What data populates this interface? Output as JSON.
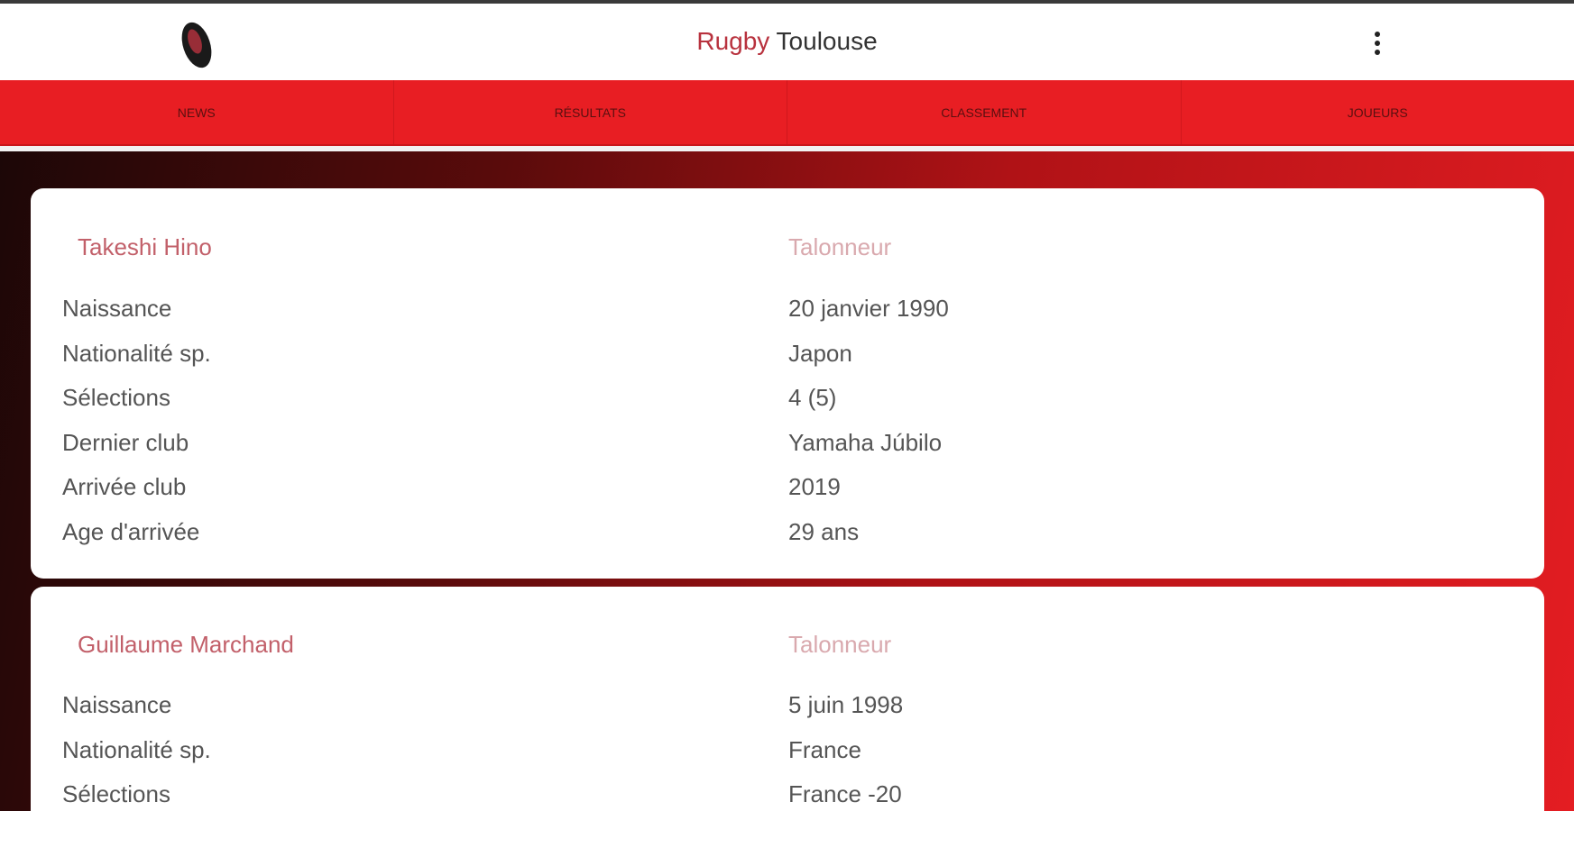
{
  "header": {
    "title_accent": "Rugby",
    "title_rest": " Toulouse",
    "logo_icon": "rugby-ball-icon",
    "menu_icon": "kebab-menu-icon"
  },
  "nav": [
    {
      "label": "News"
    },
    {
      "label": "Résultats"
    },
    {
      "label": "Classement"
    },
    {
      "label": "Joueurs"
    }
  ],
  "players": [
    {
      "name": "Takeshi Hino",
      "position": "Talonneur",
      "rows": [
        {
          "label": "Naissance",
          "value": "20 janvier 1990"
        },
        {
          "label": "Nationalité sp.",
          "value": "Japon"
        },
        {
          "label": "Sélections",
          "value": "4 (5)"
        },
        {
          "label": "Dernier club",
          "value": "Yamaha Júbilo"
        },
        {
          "label": "Arrivée club",
          "value": "2019"
        },
        {
          "label": "Age d'arrivée",
          "value": "29 ans"
        }
      ]
    },
    {
      "name": "Guillaume Marchand",
      "position": "Talonneur",
      "rows": [
        {
          "label": "Naissance",
          "value": "5 juin 1998"
        },
        {
          "label": "Nationalité sp.",
          "value": "France"
        },
        {
          "label": "Sélections",
          "value": "France -20"
        }
      ]
    }
  ],
  "colors": {
    "nav": "#e81e23",
    "accent": "#b8323e"
  }
}
